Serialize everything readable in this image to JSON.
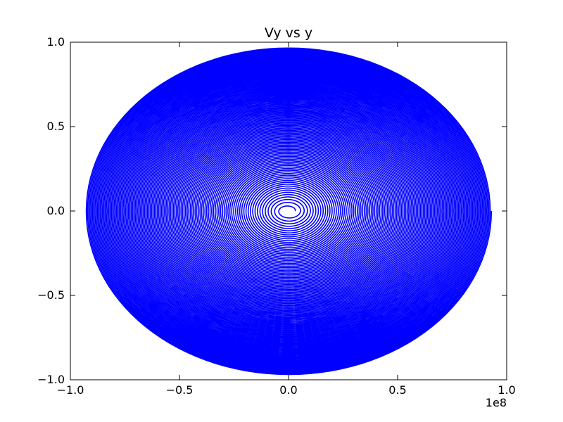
{
  "chart_data": {
    "type": "line",
    "title": "Vy vs y",
    "xlabel": "",
    "ylabel": "",
    "x_offset_label": "1e8",
    "xlim": [
      -1.0,
      1.0
    ],
    "ylim": [
      -1.0,
      1.0
    ],
    "x_scale": 100000000.0,
    "x_ticks": [
      -1.0,
      -0.5,
      0.0,
      0.5,
      1.0
    ],
    "x_tick_labels": [
      "−1.0",
      "−0.5",
      "0.0",
      "0.5",
      "1.0"
    ],
    "y_ticks": [
      -1.0,
      -0.5,
      0.0,
      0.5,
      1.0
    ],
    "y_tick_labels": [
      "−1.0",
      "−0.5",
      "0.0",
      "0.5",
      "1.0"
    ],
    "grid": false,
    "legend": "none",
    "series": [
      {
        "color": "#0000ff",
        "shape": "outward spiral",
        "center": [
          0.0,
          0.0
        ],
        "inner_radius_x": 0.03,
        "inner_radius_y": 0.02,
        "outer_radius_x": 0.93,
        "outer_radius_y": 0.97,
        "turns": 120
      }
    ]
  }
}
